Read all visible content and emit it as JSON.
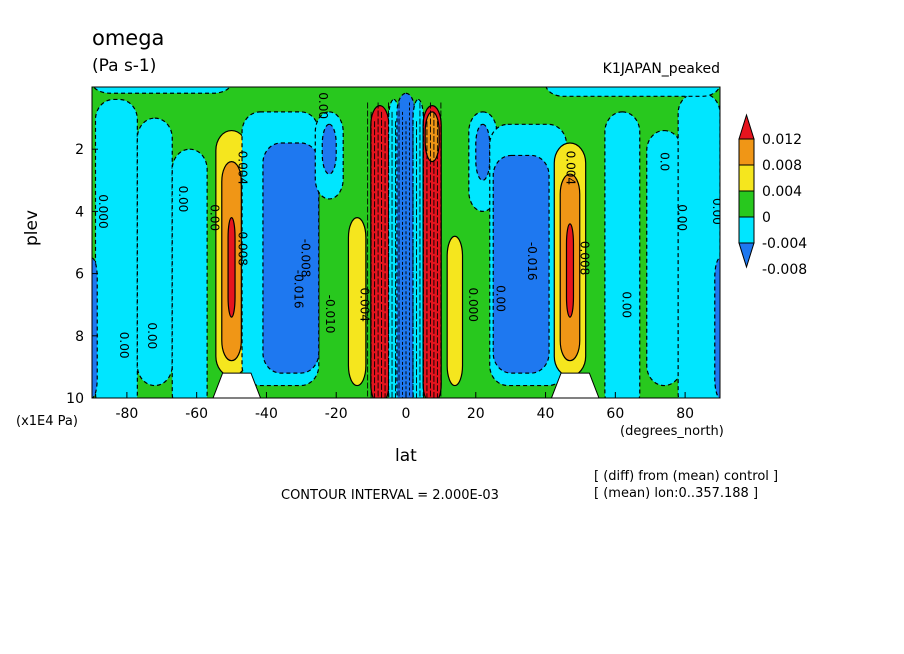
{
  "header": {
    "title": "omega",
    "units": "(Pa s-1)",
    "run": "K1JAPAN_peaked"
  },
  "footer": {
    "contour_interval": "CONTOUR INTERVAL = 2.000E-03",
    "note1": "[ (diff) from (mean) control ]",
    "note2": "[ (mean) lon:0..357.188 ]"
  },
  "colors": {
    "red": "#e6141e",
    "orange": "#f09616",
    "yellow": "#f5e61e",
    "green": "#28c81e",
    "cyan": "#00e6ff",
    "blue": "#1e78f0",
    "white": "#ffffff"
  },
  "chart_data": {
    "type": "heatmap",
    "title": "omega",
    "xlabel": "lat",
    "xunits": "(degrees_north)",
    "ylabel": "plev",
    "yscale_label": "(x1E4 Pa)",
    "xlim": [
      -90,
      90
    ],
    "ylim": [
      10,
      0
    ],
    "xticks": [
      -80,
      -60,
      -40,
      -20,
      0,
      20,
      40,
      60,
      80
    ],
    "yticks": [
      2,
      4,
      6,
      8,
      10
    ],
    "colorbar": {
      "levels": [
        "0.012",
        "0.008",
        "0.004",
        "0",
        "-0.004",
        "-0.008"
      ],
      "bins": [
        "red",
        "orange",
        "yellow",
        "green",
        "cyan",
        "blue"
      ]
    },
    "contour_labels": [
      {
        "text": "0.00",
        "lat": -65,
        "plev": 3.6
      },
      {
        "text": "0.00",
        "lat": -56,
        "plev": 4.2
      },
      {
        "text": "0.004",
        "lat": -48,
        "plev": 2.6
      },
      {
        "text": "0.008",
        "lat": -48,
        "plev": 5.2
      },
      {
        "text": "0.000",
        "lat": -88,
        "plev": 4.0
      },
      {
        "text": "0.00",
        "lat": -82,
        "plev": 8.3
      },
      {
        "text": "0.00",
        "lat": -74,
        "plev": 8.0
      },
      {
        "text": "-0.016",
        "lat": -32,
        "plev": 6.5
      },
      {
        "text": "-0.008",
        "lat": -30,
        "plev": 5.5
      },
      {
        "text": "-0.010",
        "lat": -23,
        "plev": 7.3
      },
      {
        "text": "0.004",
        "lat": -13,
        "plev": 7.0
      },
      {
        "text": "0.00",
        "lat": -25,
        "plev": 0.6
      },
      {
        "text": "0.000",
        "lat": 18,
        "plev": 7.0
      },
      {
        "text": "0.00",
        "lat": 26,
        "plev": 6.8
      },
      {
        "text": "-0.016",
        "lat": 35,
        "plev": 5.6
      },
      {
        "text": "0.004",
        "lat": 46,
        "plev": 2.6
      },
      {
        "text": "0.008",
        "lat": 50,
        "plev": 5.5
      },
      {
        "text": "0.00",
        "lat": 62,
        "plev": 7.0
      },
      {
        "text": "0.0",
        "lat": 73,
        "plev": 2.4
      },
      {
        "text": "0.00",
        "lat": 78,
        "plev": 4.2
      },
      {
        "text": "0.00",
        "lat": 88,
        "plev": 4.0
      }
    ]
  }
}
